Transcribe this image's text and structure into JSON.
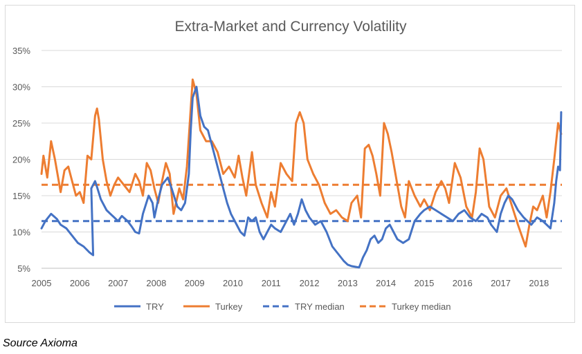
{
  "source_note": "Source Axioma",
  "chart_data": {
    "type": "line",
    "title": "Extra-Market and Currency Volatility",
    "xlabel": "",
    "ylabel": "",
    "x_ticks": [
      "2005",
      "2006",
      "2007",
      "2008",
      "2009",
      "2010",
      "2011",
      "2012",
      "2013",
      "2014",
      "2015",
      "2016",
      "2017",
      "2018"
    ],
    "y_ticks": [
      "5%",
      "10%",
      "15%",
      "20%",
      "25%",
      "30%",
      "35%"
    ],
    "xlim": [
      2005.0,
      2018.6
    ],
    "ylim": [
      5,
      35
    ],
    "grid": true,
    "legend": "bottom",
    "series": [
      {
        "name": "TRY",
        "style": "solid",
        "color": "#4472c4",
        "x": [
          2005.0,
          2005.1,
          2005.25,
          2005.4,
          2005.5,
          2005.65,
          2005.8,
          2005.95,
          2006.1,
          2006.25,
          2006.35,
          2006.3,
          2006.4,
          2006.45,
          2006.55,
          2006.7,
          2006.8,
          2006.9,
          2007.0,
          2007.1,
          2007.25,
          2007.35,
          2007.45,
          2007.55,
          2007.65,
          2007.8,
          2007.9,
          2007.95,
          2008.05,
          2008.15,
          2008.3,
          2008.4,
          2008.55,
          2008.65,
          2008.75,
          2008.85,
          2008.9,
          2008.95,
          2009.05,
          2009.15,
          2009.25,
          2009.35,
          2009.45,
          2009.55,
          2009.65,
          2009.75,
          2009.85,
          2009.95,
          2010.1,
          2010.2,
          2010.3,
          2010.4,
          2010.5,
          2010.6,
          2010.7,
          2010.8,
          2010.9,
          2011.0,
          2011.1,
          2011.25,
          2011.4,
          2011.5,
          2011.6,
          2011.7,
          2011.8,
          2011.9,
          2012.0,
          2012.15,
          2012.3,
          2012.45,
          2012.6,
          2012.75,
          2012.9,
          2013.0,
          2013.1,
          2013.2,
          2013.3,
          2013.4,
          2013.5,
          2013.6,
          2013.7,
          2013.8,
          2013.9,
          2014.0,
          2014.1,
          2014.2,
          2014.3,
          2014.45,
          2014.6,
          2014.75,
          2014.9,
          2015.0,
          2015.15,
          2015.3,
          2015.45,
          2015.6,
          2015.75,
          2015.9,
          2016.05,
          2016.2,
          2016.35,
          2016.5,
          2016.65,
          2016.75,
          2016.9,
          2017.0,
          2017.1,
          2017.2,
          2017.3,
          2017.45,
          2017.6,
          2017.7,
          2017.8,
          2017.95,
          2018.1,
          2018.2,
          2018.3,
          2018.4,
          2018.45,
          2018.5,
          2018.55,
          2018.58
        ],
        "values": [
          10.5,
          11.5,
          12.5,
          11.8,
          11.0,
          10.5,
          9.5,
          8.5,
          8.0,
          7.2,
          6.8,
          16.0,
          17.0,
          16.2,
          14.5,
          13.0,
          12.5,
          12.0,
          11.5,
          12.2,
          11.5,
          10.8,
          10.0,
          9.8,
          12.5,
          15.0,
          14.0,
          12.0,
          14.5,
          16.5,
          17.5,
          16.0,
          13.5,
          13.0,
          14.0,
          18.0,
          24.0,
          28.5,
          30.0,
          26.0,
          24.5,
          24.0,
          22.0,
          20.0,
          18.0,
          16.0,
          14.0,
          12.5,
          11.0,
          10.0,
          9.5,
          12.0,
          11.5,
          12.0,
          10.0,
          9.0,
          10.0,
          11.0,
          10.5,
          10.0,
          11.5,
          12.5,
          11.0,
          12.5,
          14.5,
          13.0,
          12.0,
          11.0,
          11.5,
          10.0,
          8.0,
          7.0,
          6.0,
          5.5,
          5.3,
          5.2,
          5.1,
          6.5,
          7.5,
          9.0,
          9.5,
          8.5,
          9.0,
          10.5,
          11.0,
          10.0,
          9.0,
          8.5,
          9.0,
          11.5,
          12.5,
          13.0,
          13.5,
          13.0,
          12.5,
          12.0,
          11.5,
          12.5,
          13.0,
          12.0,
          11.5,
          12.5,
          12.0,
          11.0,
          10.0,
          12.5,
          14.0,
          15.0,
          14.5,
          13.0,
          12.0,
          11.5,
          11.0,
          12.0,
          11.5,
          11.0,
          10.5,
          14.0,
          17.0,
          19.0,
          18.5,
          26.5
        ]
      },
      {
        "name": "Turkey",
        "style": "solid",
        "color": "#ed7d31",
        "x": [
          2005.0,
          2005.05,
          2005.15,
          2005.25,
          2005.35,
          2005.45,
          2005.5,
          2005.6,
          2005.7,
          2005.8,
          2005.9,
          2006.0,
          2006.1,
          2006.2,
          2006.3,
          2006.4,
          2006.45,
          2006.5,
          2006.6,
          2006.7,
          2006.8,
          2006.9,
          2007.0,
          2007.15,
          2007.3,
          2007.45,
          2007.55,
          2007.65,
          2007.75,
          2007.85,
          2007.95,
          2008.05,
          2008.15,
          2008.25,
          2008.35,
          2008.45,
          2008.6,
          2008.7,
          2008.8,
          2008.9,
          2008.95,
          2009.05,
          2009.15,
          2009.3,
          2009.45,
          2009.6,
          2009.75,
          2009.9,
          2010.05,
          2010.15,
          2010.25,
          2010.35,
          2010.5,
          2010.6,
          2010.75,
          2010.9,
          2011.0,
          2011.1,
          2011.25,
          2011.4,
          2011.55,
          2011.65,
          2011.75,
          2011.85,
          2011.95,
          2012.1,
          2012.25,
          2012.4,
          2012.55,
          2012.7,
          2012.85,
          2013.0,
          2013.1,
          2013.25,
          2013.35,
          2013.45,
          2013.55,
          2013.65,
          2013.75,
          2013.85,
          2013.95,
          2014.05,
          2014.15,
          2014.3,
          2014.4,
          2014.5,
          2014.6,
          2014.75,
          2014.9,
          2015.0,
          2015.15,
          2015.3,
          2015.45,
          2015.55,
          2015.65,
          2015.8,
          2015.95,
          2016.1,
          2016.25,
          2016.35,
          2016.45,
          2016.55,
          2016.7,
          2016.85,
          2017.0,
          2017.15,
          2017.3,
          2017.45,
          2017.55,
          2017.65,
          2017.75,
          2017.85,
          2017.95,
          2018.1,
          2018.2,
          2018.3,
          2018.4,
          2018.5,
          2018.58
        ],
        "values": [
          18.0,
          20.5,
          17.5,
          22.5,
          20.0,
          17.0,
          15.5,
          18.5,
          19.0,
          17.0,
          15.0,
          15.5,
          14.0,
          20.5,
          20.0,
          26.0,
          27.0,
          25.5,
          20.0,
          17.0,
          15.0,
          16.5,
          17.5,
          16.5,
          15.5,
          18.0,
          17.0,
          15.0,
          19.5,
          18.5,
          16.0,
          14.0,
          17.0,
          19.5,
          18.0,
          12.5,
          16.0,
          14.5,
          19.0,
          27.0,
          31.0,
          29.0,
          24.0,
          22.5,
          22.5,
          21.0,
          18.0,
          19.0,
          17.5,
          20.5,
          17.5,
          15.0,
          21.0,
          16.5,
          14.0,
          12.0,
          15.5,
          13.5,
          19.5,
          18.0,
          17.0,
          25.0,
          26.5,
          25.0,
          20.0,
          18.0,
          16.5,
          14.0,
          12.5,
          13.0,
          12.0,
          11.5,
          14.0,
          15.0,
          12.0,
          21.5,
          22.0,
          20.5,
          18.0,
          15.0,
          25.0,
          23.5,
          21.0,
          16.5,
          13.5,
          12.0,
          17.0,
          15.0,
          13.5,
          14.5,
          13.0,
          15.5,
          17.0,
          16.0,
          14.0,
          19.5,
          17.5,
          13.5,
          12.0,
          15.5,
          21.5,
          20.0,
          13.5,
          12.0,
          15.0,
          16.0,
          13.5,
          11.0,
          9.5,
          8.0,
          11.0,
          13.5,
          13.0,
          15.0,
          12.0,
          15.5,
          20.0,
          25.0,
          23.5
        ]
      },
      {
        "name": "TRY median",
        "style": "dashed",
        "color": "#4472c4",
        "x": [
          2005.0,
          2018.6
        ],
        "values": [
          11.5,
          11.5
        ]
      },
      {
        "name": "Turkey median",
        "style": "dashed",
        "color": "#ed7d31",
        "x": [
          2005.0,
          2018.6
        ],
        "values": [
          16.5,
          16.5
        ]
      }
    ]
  }
}
